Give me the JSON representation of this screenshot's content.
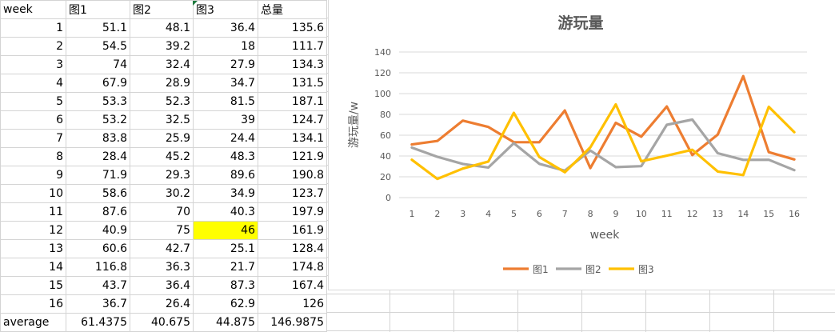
{
  "sheet": {
    "headers": [
      "week",
      "图1",
      "图2",
      "图3",
      "总量"
    ],
    "rows": [
      [
        "1",
        "51.1",
        "48.1",
        "36.4",
        "135.6"
      ],
      [
        "2",
        "54.5",
        "39.2",
        "18",
        "111.7"
      ],
      [
        "3",
        "74",
        "32.4",
        "27.9",
        "134.3"
      ],
      [
        "4",
        "67.9",
        "28.9",
        "34.7",
        "131.5"
      ],
      [
        "5",
        "53.3",
        "52.3",
        "81.5",
        "187.1"
      ],
      [
        "6",
        "53.2",
        "32.5",
        "39",
        "124.7"
      ],
      [
        "7",
        "83.8",
        "25.9",
        "24.4",
        "134.1"
      ],
      [
        "8",
        "28.4",
        "45.2",
        "48.3",
        "121.9"
      ],
      [
        "9",
        "71.9",
        "29.3",
        "89.6",
        "190.8"
      ],
      [
        "10",
        "58.6",
        "30.2",
        "34.9",
        "123.7"
      ],
      [
        "11",
        "87.6",
        "70",
        "40.3",
        "197.9"
      ],
      [
        "12",
        "40.9",
        "75",
        "46",
        "161.9"
      ],
      [
        "13",
        "60.6",
        "42.7",
        "25.1",
        "128.4"
      ],
      [
        "14",
        "116.8",
        "36.3",
        "21.7",
        "174.8"
      ],
      [
        "15",
        "43.7",
        "36.4",
        "87.3",
        "167.4"
      ],
      [
        "16",
        "36.7",
        "26.4",
        "62.9",
        "126"
      ]
    ],
    "footer": [
      "average",
      "61.4375",
      "40.675",
      "44.875",
      "146.9875"
    ],
    "highlight_color": "#ffff00"
  },
  "chart_data": {
    "type": "line",
    "title": "游玩量",
    "xlabel": "week",
    "ylabel": "游玩量/w",
    "x": [
      1,
      2,
      3,
      4,
      5,
      6,
      7,
      8,
      9,
      10,
      11,
      12,
      13,
      14,
      15,
      16
    ],
    "ylim": [
      0,
      140
    ],
    "yticks": [
      0,
      20,
      40,
      60,
      80,
      100,
      120,
      140
    ],
    "grid": true,
    "legend": "bottom",
    "series": [
      {
        "name": "图1",
        "color": "#ed7d31",
        "values": [
          51.1,
          54.5,
          74,
          67.9,
          53.3,
          53.2,
          83.8,
          28.4,
          71.9,
          58.6,
          87.6,
          40.9,
          60.6,
          116.8,
          43.7,
          36.7
        ]
      },
      {
        "name": "图2",
        "color": "#a5a5a5",
        "values": [
          48.1,
          39.2,
          32.4,
          28.9,
          52.3,
          32.5,
          25.9,
          45.2,
          29.3,
          30.2,
          70,
          75,
          42.7,
          36.3,
          36.4,
          26.4
        ]
      },
      {
        "name": "图3",
        "color": "#ffc000",
        "values": [
          36.4,
          18,
          27.9,
          34.7,
          81.5,
          39,
          24.4,
          48.3,
          89.6,
          34.9,
          40.3,
          46,
          25.1,
          21.7,
          87.3,
          62.9
        ]
      }
    ]
  }
}
